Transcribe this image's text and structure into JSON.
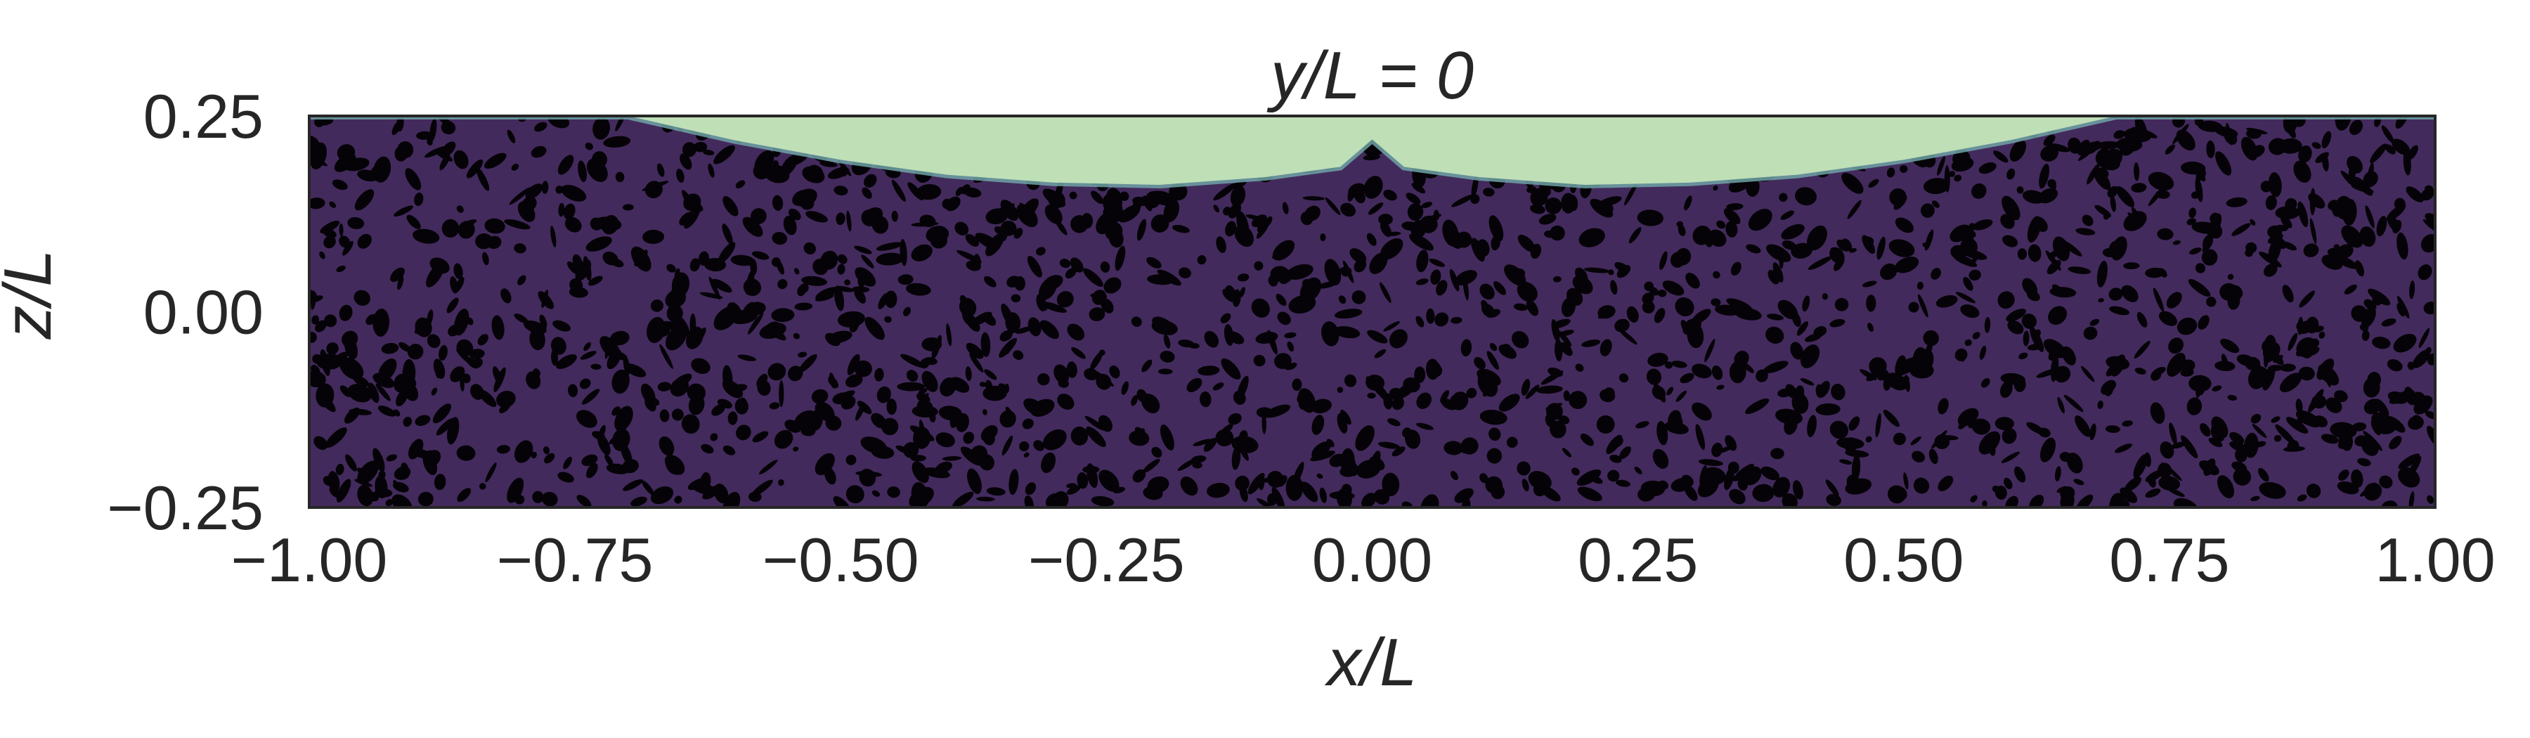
{
  "chart_data": {
    "type": "heatmap",
    "title": "y/L = 0",
    "xlabel": "x/L",
    "ylabel": "z/L",
    "xlim": [
      -1.0,
      1.0
    ],
    "ylim": [
      -0.25,
      0.25
    ],
    "x_ticks": [
      -1.0,
      -0.75,
      -0.5,
      -0.25,
      0.0,
      0.25,
      0.5,
      0.75,
      1.0
    ],
    "x_tick_labels": [
      "−1.00",
      "−0.75",
      "−0.50",
      "−0.25",
      "0.00",
      "0.25",
      "0.50",
      "0.75",
      "1.00"
    ],
    "y_ticks": [
      -0.25,
      0.0,
      0.25
    ],
    "y_tick_labels": [
      "−0.25",
      "0.00",
      "0.25"
    ],
    "grid": false,
    "colors": {
      "background_field": "#432a5c",
      "noise_blobs": "#050307",
      "upper_region": "#bfdfb7",
      "interface_edge": "#6fa3a6",
      "frame": "#262626"
    },
    "interface_boundary": {
      "x": [
        -1.0,
        -0.9,
        -0.8,
        -0.7,
        -0.6,
        -0.5,
        -0.4,
        -0.3,
        -0.2,
        -0.1,
        -0.03,
        0.0,
        0.03,
        0.1,
        0.2,
        0.3,
        0.4,
        0.5,
        0.6,
        0.7,
        0.8,
        0.9,
        1.0
      ],
      "z": [
        0.25,
        0.25,
        0.25,
        0.25,
        0.219,
        0.194,
        0.175,
        0.165,
        0.162,
        0.172,
        0.185,
        0.22,
        0.185,
        0.172,
        0.162,
        0.165,
        0.175,
        0.194,
        0.219,
        0.25,
        0.25,
        0.25,
        0.25
      ]
    }
  }
}
